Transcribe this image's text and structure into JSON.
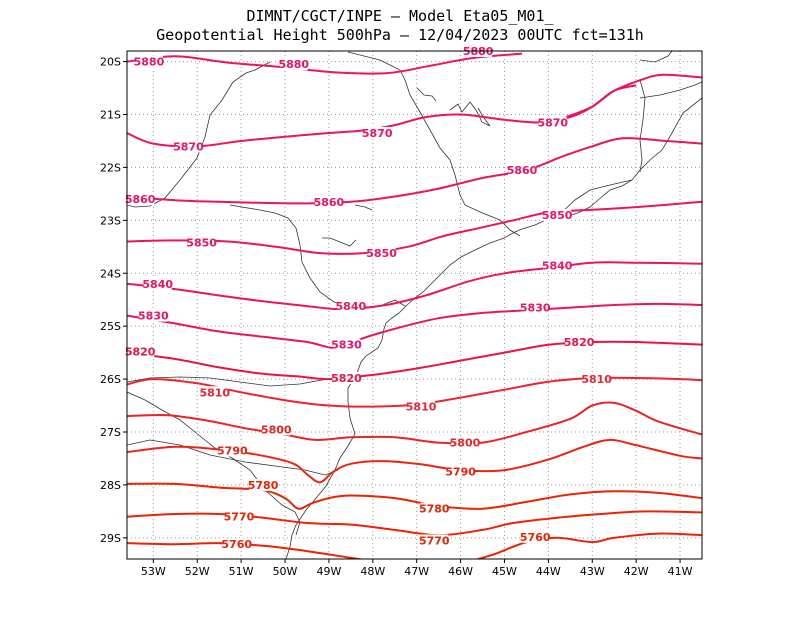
{
  "title": {
    "line1": "DIMNT/CGCT/INPE —   Model Eta05_M01_",
    "line2": "Geopotential Height 500hPa —   12/04/2023 00UTC fct=131h"
  },
  "axes": {
    "lon_range": [
      -53.6,
      -40.5
    ],
    "lat_range": [
      -29.4,
      -19.8
    ],
    "lon_ticks": [
      {
        "v": -53,
        "label": "53W"
      },
      {
        "v": -52,
        "label": "52W"
      },
      {
        "v": -51,
        "label": "51W"
      },
      {
        "v": -50,
        "label": "50W"
      },
      {
        "v": -49,
        "label": "49W"
      },
      {
        "v": -48,
        "label": "48W"
      },
      {
        "v": -47,
        "label": "47W"
      },
      {
        "v": -46,
        "label": "46W"
      },
      {
        "v": -45,
        "label": "45W"
      },
      {
        "v": -44,
        "label": "44W"
      },
      {
        "v": -43,
        "label": "43W"
      },
      {
        "v": -42,
        "label": "42W"
      },
      {
        "v": -41,
        "label": "41W"
      }
    ],
    "lat_ticks": [
      {
        "v": -20,
        "label": "20S"
      },
      {
        "v": -21,
        "label": "21S"
      },
      {
        "v": -22,
        "label": "22S"
      },
      {
        "v": -23,
        "label": "23S"
      },
      {
        "v": -24,
        "label": "24S"
      },
      {
        "v": -25,
        "label": "25S"
      },
      {
        "v": -26,
        "label": "26S"
      },
      {
        "v": -27,
        "label": "27S"
      },
      {
        "v": -28,
        "label": "28S"
      },
      {
        "v": -29,
        "label": "29S"
      }
    ]
  },
  "contours": [
    {
      "value": 5880,
      "color": "#ee1166",
      "points": [
        [
          -53.6,
          -20.0
        ],
        [
          -52.5,
          -19.9
        ],
        [
          -51.3,
          -20.02
        ],
        [
          -50.1,
          -20.1
        ],
        [
          -48.9,
          -20.2
        ],
        [
          -47.7,
          -20.22
        ],
        [
          -46.7,
          -20.08
        ],
        [
          -45.7,
          -19.93
        ],
        [
          -44.6,
          -19.85
        ]
      ],
      "labels": [
        {
          "text": "5880",
          "lon": -53.1,
          "lat": -20.0
        },
        {
          "text": "5880",
          "lon": -49.8,
          "lat": -20.05
        },
        {
          "text": "5880",
          "lon": -45.6,
          "lat": -19.8
        }
      ]
    },
    {
      "value": 5880,
      "color": "#ee1166",
      "points": [
        [
          -43.6,
          -21.05
        ],
        [
          -43.0,
          -20.85
        ],
        [
          -42.5,
          -20.55
        ],
        [
          -41.9,
          -20.35
        ],
        [
          -41.4,
          -20.25
        ],
        [
          -40.5,
          -20.3
        ]
      ],
      "labels": []
    },
    {
      "value": 5870,
      "color": "#ee1166",
      "points": [
        [
          -53.6,
          -21.35
        ],
        [
          -53.0,
          -21.55
        ],
        [
          -52.0,
          -21.6
        ],
        [
          -51.0,
          -21.5
        ],
        [
          -50.0,
          -21.42
        ],
        [
          -49.0,
          -21.35
        ],
        [
          -48.2,
          -21.3
        ],
        [
          -47.5,
          -21.2
        ],
        [
          -46.8,
          -21.05
        ],
        [
          -46.0,
          -21.0
        ],
        [
          -45.0,
          -21.1
        ],
        [
          -44.2,
          -21.15
        ],
        [
          -43.5,
          -21.05
        ],
        [
          -43.0,
          -20.85
        ],
        [
          -42.5,
          -20.55
        ],
        [
          -42.0,
          -20.45
        ]
      ],
      "labels": [
        {
          "text": "5870",
          "lon": -52.2,
          "lat": -21.6
        },
        {
          "text": "5870",
          "lon": -47.9,
          "lat": -21.35
        },
        {
          "text": "5870",
          "lon": -43.9,
          "lat": -21.15
        }
      ]
    },
    {
      "value": 5860,
      "color": "#ee1166",
      "points": [
        [
          -53.6,
          -22.55
        ],
        [
          -52.5,
          -22.62
        ],
        [
          -51.5,
          -22.65
        ],
        [
          -50.5,
          -22.67
        ],
        [
          -49.5,
          -22.68
        ],
        [
          -48.5,
          -22.65
        ],
        [
          -47.5,
          -22.55
        ],
        [
          -46.5,
          -22.4
        ],
        [
          -45.5,
          -22.2
        ],
        [
          -44.5,
          -22.05
        ],
        [
          -43.7,
          -21.8
        ],
        [
          -43.0,
          -21.6
        ],
        [
          -42.3,
          -21.45
        ],
        [
          -41.3,
          -21.5
        ],
        [
          -40.5,
          -21.55
        ]
      ],
      "labels": [
        {
          "text": "5860",
          "lon": -53.3,
          "lat": -22.6
        },
        {
          "text": "5860",
          "lon": -49.0,
          "lat": -22.65
        },
        {
          "text": "5860",
          "lon": -44.6,
          "lat": -22.05
        }
      ]
    },
    {
      "value": 5850,
      "color": "#ee1166",
      "points": [
        [
          -53.6,
          -23.4
        ],
        [
          -52.5,
          -23.38
        ],
        [
          -51.3,
          -23.4
        ],
        [
          -50.2,
          -23.5
        ],
        [
          -49.2,
          -23.62
        ],
        [
          -48.2,
          -23.62
        ],
        [
          -47.2,
          -23.5
        ],
        [
          -46.4,
          -23.3
        ],
        [
          -45.6,
          -23.15
        ],
        [
          -44.8,
          -23.0
        ],
        [
          -44.0,
          -22.85
        ],
        [
          -43.0,
          -22.8
        ],
        [
          -42.0,
          -22.75
        ],
        [
          -40.5,
          -22.65
        ]
      ],
      "labels": [
        {
          "text": "5850",
          "lon": -51.9,
          "lat": -23.42
        },
        {
          "text": "5850",
          "lon": -47.8,
          "lat": -23.62
        },
        {
          "text": "5850",
          "lon": -43.8,
          "lat": -22.9
        }
      ]
    },
    {
      "value": 5840,
      "color": "#ee1166",
      "points": [
        [
          -53.6,
          -24.2
        ],
        [
          -52.5,
          -24.3
        ],
        [
          -51.5,
          -24.42
        ],
        [
          -50.5,
          -24.53
        ],
        [
          -49.5,
          -24.62
        ],
        [
          -48.7,
          -24.68
        ],
        [
          -47.7,
          -24.6
        ],
        [
          -46.8,
          -24.42
        ],
        [
          -45.8,
          -24.15
        ],
        [
          -45.0,
          -24.0
        ],
        [
          -44.0,
          -23.9
        ],
        [
          -43.0,
          -23.8
        ],
        [
          -42.0,
          -23.8
        ],
        [
          -40.5,
          -23.82
        ]
      ],
      "labels": [
        {
          "text": "5840",
          "lon": -52.9,
          "lat": -24.2
        },
        {
          "text": "5840",
          "lon": -48.5,
          "lat": -24.62
        },
        {
          "text": "5840",
          "lon": -43.8,
          "lat": -23.85
        }
      ]
    },
    {
      "value": 5830,
      "color": "#ee1166",
      "points": [
        [
          -53.6,
          -24.8
        ],
        [
          -52.5,
          -24.95
        ],
        [
          -51.5,
          -25.1
        ],
        [
          -50.5,
          -25.2
        ],
        [
          -49.5,
          -25.3
        ],
        [
          -48.8,
          -25.42
        ],
        [
          -48.3,
          -25.25
        ],
        [
          -47.5,
          -25.05
        ],
        [
          -46.5,
          -24.85
        ],
        [
          -45.5,
          -24.75
        ],
        [
          -44.5,
          -24.7
        ],
        [
          -43.5,
          -24.65
        ],
        [
          -42.5,
          -24.6
        ],
        [
          -41.5,
          -24.58
        ],
        [
          -40.5,
          -24.6
        ]
      ],
      "labels": [
        {
          "text": "5830",
          "lon": -53.0,
          "lat": -24.8
        },
        {
          "text": "5830",
          "lon": -48.6,
          "lat": -25.35
        },
        {
          "text": "5830",
          "lon": -44.3,
          "lat": -24.65
        }
      ]
    },
    {
      "value": 5820,
      "color": "#ee1144",
      "points": [
        [
          -53.6,
          -25.5
        ],
        [
          -52.5,
          -25.62
        ],
        [
          -51.5,
          -25.78
        ],
        [
          -50.5,
          -25.9
        ],
        [
          -49.7,
          -25.95
        ],
        [
          -49.0,
          -26.0
        ],
        [
          -48.0,
          -25.92
        ],
        [
          -47.0,
          -25.8
        ],
        [
          -46.0,
          -25.65
        ],
        [
          -45.0,
          -25.5
        ],
        [
          -44.0,
          -25.35
        ],
        [
          -43.0,
          -25.3
        ],
        [
          -42.0,
          -25.3
        ],
        [
          -40.5,
          -25.35
        ]
      ],
      "labels": [
        {
          "text": "5820",
          "lon": -53.3,
          "lat": -25.48
        },
        {
          "text": "5820",
          "lon": -48.6,
          "lat": -25.98
        },
        {
          "text": "5820",
          "lon": -43.3,
          "lat": -25.3
        }
      ]
    },
    {
      "value": 5810,
      "color": "#ee2233",
      "points": [
        [
          -53.6,
          -26.1
        ],
        [
          -53.0,
          -26.0
        ],
        [
          -52.0,
          -26.08
        ],
        [
          -51.0,
          -26.25
        ],
        [
          -50.0,
          -26.4
        ],
        [
          -49.0,
          -26.5
        ],
        [
          -48.0,
          -26.52
        ],
        [
          -47.0,
          -26.48
        ],
        [
          -46.0,
          -26.35
        ],
        [
          -45.0,
          -26.2
        ],
        [
          -44.0,
          -26.05
        ],
        [
          -43.0,
          -25.98
        ],
        [
          -42.0,
          -25.98
        ],
        [
          -41.0,
          -26.0
        ],
        [
          -40.5,
          -26.02
        ]
      ],
      "labels": [
        {
          "text": "5810",
          "lon": -51.6,
          "lat": -26.25
        },
        {
          "text": "5810",
          "lon": -46.9,
          "lat": -26.52
        },
        {
          "text": "5810",
          "lon": -42.9,
          "lat": -26.0
        }
      ]
    },
    {
      "value": 5800,
      "color": "#ee2222",
      "points": [
        [
          -53.6,
          -26.7
        ],
        [
          -52.7,
          -26.68
        ],
        [
          -51.8,
          -26.78
        ],
        [
          -50.9,
          -26.93
        ],
        [
          -50.0,
          -27.05
        ],
        [
          -49.3,
          -27.15
        ],
        [
          -48.5,
          -27.1
        ],
        [
          -47.5,
          -27.1
        ],
        [
          -46.5,
          -27.2
        ],
        [
          -45.5,
          -27.2
        ],
        [
          -44.5,
          -27.0
        ],
        [
          -43.5,
          -26.75
        ],
        [
          -43.0,
          -26.5
        ],
        [
          -42.5,
          -26.45
        ],
        [
          -42.0,
          -26.6
        ],
        [
          -41.5,
          -26.8
        ],
        [
          -40.5,
          -27.05
        ]
      ],
      "labels": [
        {
          "text": "5800",
          "lon": -50.2,
          "lat": -26.95
        },
        {
          "text": "5800",
          "lon": -45.9,
          "lat": -27.2
        }
      ]
    },
    {
      "value": 5790,
      "color": "#ee2211",
      "points": [
        [
          -53.6,
          -27.38
        ],
        [
          -52.5,
          -27.28
        ],
        [
          -51.5,
          -27.33
        ],
        [
          -50.5,
          -27.45
        ],
        [
          -49.8,
          -27.6
        ],
        [
          -49.5,
          -27.8
        ],
        [
          -49.2,
          -27.95
        ],
        [
          -48.9,
          -27.75
        ],
        [
          -48.5,
          -27.6
        ],
        [
          -47.8,
          -27.55
        ],
        [
          -47.0,
          -27.6
        ],
        [
          -46.0,
          -27.72
        ],
        [
          -45.0,
          -27.72
        ],
        [
          -44.0,
          -27.52
        ],
        [
          -43.2,
          -27.28
        ],
        [
          -42.6,
          -27.15
        ],
        [
          -42.0,
          -27.25
        ],
        [
          -41.0,
          -27.45
        ],
        [
          -40.5,
          -27.5
        ]
      ],
      "labels": [
        {
          "text": "5790",
          "lon": -51.2,
          "lat": -27.35
        },
        {
          "text": "5790",
          "lon": -46.0,
          "lat": -27.75
        }
      ]
    },
    {
      "value": 5780,
      "color": "#ee2200",
      "points": [
        [
          -53.6,
          -27.98
        ],
        [
          -52.5,
          -27.98
        ],
        [
          -51.5,
          -28.05
        ],
        [
          -50.5,
          -28.1
        ],
        [
          -50.0,
          -28.25
        ],
        [
          -49.7,
          -28.45
        ],
        [
          -49.4,
          -28.35
        ],
        [
          -49.0,
          -28.25
        ],
        [
          -48.5,
          -28.2
        ],
        [
          -47.5,
          -28.25
        ],
        [
          -46.5,
          -28.4
        ],
        [
          -45.5,
          -28.45
        ],
        [
          -44.5,
          -28.32
        ],
        [
          -43.5,
          -28.18
        ],
        [
          -42.5,
          -28.12
        ],
        [
          -41.5,
          -28.15
        ],
        [
          -40.5,
          -28.25
        ]
      ],
      "labels": [
        {
          "text": "5780",
          "lon": -50.5,
          "lat": -28.0
        },
        {
          "text": "5780",
          "lon": -46.6,
          "lat": -28.45
        }
      ]
    },
    {
      "value": 5770,
      "color": "#ee2200",
      "points": [
        [
          -53.6,
          -28.6
        ],
        [
          -52.5,
          -28.55
        ],
        [
          -51.5,
          -28.55
        ],
        [
          -50.5,
          -28.62
        ],
        [
          -49.5,
          -28.72
        ],
        [
          -48.5,
          -28.75
        ],
        [
          -47.5,
          -28.85
        ],
        [
          -46.5,
          -28.95
        ],
        [
          -45.5,
          -28.85
        ],
        [
          -44.8,
          -28.72
        ],
        [
          -43.8,
          -28.62
        ],
        [
          -42.8,
          -28.55
        ],
        [
          -41.8,
          -28.5
        ],
        [
          -40.5,
          -28.52
        ]
      ],
      "labels": [
        {
          "text": "5770",
          "lon": -51.05,
          "lat": -28.6
        },
        {
          "text": "5770",
          "lon": -46.6,
          "lat": -29.05
        }
      ]
    },
    {
      "value": 5760,
      "color": "#ee2200",
      "points": [
        [
          -53.6,
          -29.1
        ],
        [
          -52.5,
          -29.12
        ],
        [
          -51.5,
          -29.1
        ],
        [
          -50.5,
          -29.15
        ],
        [
          -49.5,
          -29.25
        ],
        [
          -48.5,
          -29.38
        ],
        [
          -47.5,
          -29.5
        ]
      ],
      "labels": [
        {
          "text": "5760",
          "lon": -51.1,
          "lat": -29.12
        }
      ]
    },
    {
      "value": 5760,
      "color": "#ee2200",
      "points": [
        [
          -45.8,
          -29.45
        ],
        [
          -45.2,
          -29.3
        ],
        [
          -44.5,
          -29.08
        ],
        [
          -43.8,
          -29.0
        ],
        [
          -43.0,
          -29.08
        ],
        [
          -42.5,
          -29.0
        ],
        [
          -41.5,
          -28.92
        ],
        [
          -40.5,
          -28.95
        ]
      ],
      "labels": [
        {
          "text": "5760",
          "lon": -44.3,
          "lat": -28.98
        }
      ]
    }
  ]
}
